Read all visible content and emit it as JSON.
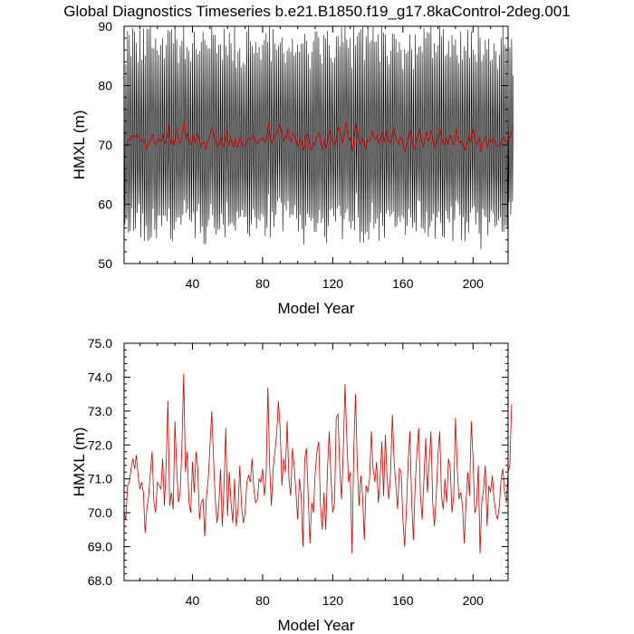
{
  "title": "Global Diagnostics Timeseries b.e21.B1850.f19_g17.8kaControl-2deg.001",
  "colors": {
    "monthly": "#000000",
    "annual": "#cc0000",
    "axis": "#000000"
  },
  "chart_data": [
    {
      "id": "top",
      "type": "line",
      "xlabel": "Model Year",
      "ylabel": "HMXL (m)",
      "xlim": [
        1,
        220
      ],
      "ylim": [
        50,
        90
      ],
      "xticks": [
        40,
        80,
        120,
        160,
        200
      ],
      "yticks": [
        50,
        60,
        70,
        80,
        90
      ],
      "ytick_labels": [
        "50",
        "60",
        "70",
        "80",
        "90"
      ],
      "series": [
        {
          "role": "monthly",
          "color": "#000000",
          "samples_per_year": 12,
          "seasonal_cycle": [
            87.5,
            83.0,
            77.0,
            71.5,
            67.0,
            62.5,
            56.5,
            59.0,
            64.0,
            68.5,
            74.0,
            80.0
          ],
          "note_envelope_min": 51,
          "note_envelope_max": 90
        },
        {
          "role": "annual",
          "color": "#cc0000",
          "yref": "bottom.values"
        }
      ]
    },
    {
      "id": "bottom",
      "type": "line",
      "xlabel": "Model Year",
      "ylabel": "HMXL (m)",
      "xlim": [
        1,
        220
      ],
      "ylim": [
        68,
        75
      ],
      "xticks": [
        40,
        80,
        120,
        160,
        200
      ],
      "yticks": [
        68,
        69,
        70,
        71,
        72,
        73,
        74,
        75
      ],
      "ytick_labels": [
        "68.0",
        "69.0",
        "70.0",
        "71.0",
        "72.0",
        "73.0",
        "74.0",
        "75.0"
      ],
      "series": [
        {
          "role": "annual",
          "color": "#cc0000",
          "x_start": 1,
          "values": [
            70.0,
            69.8,
            70.8,
            70.9,
            71.3,
            71.6,
            71.3,
            71.7,
            71.1,
            70.7,
            70.9,
            70.6,
            69.4,
            70.1,
            70.5,
            71.2,
            71.8,
            70.3,
            70.0,
            70.9,
            70.8,
            70.7,
            71.6,
            70.2,
            71.4,
            73.3,
            70.2,
            70.6,
            70.1,
            72.7,
            71.3,
            70.3,
            70.6,
            72.0,
            74.1,
            71.2,
            71.8,
            70.3,
            70.0,
            71.5,
            70.6,
            71.8,
            71.3,
            69.8,
            70.3,
            70.4,
            69.3,
            70.5,
            71.0,
            72.0,
            73.0,
            71.6,
            70.4,
            69.7,
            70.2,
            71.3,
            69.6,
            70.8,
            72.5,
            69.9,
            71.2,
            70.3,
            69.7,
            71.0,
            69.6,
            70.1,
            71.4,
            70.2,
            69.7,
            70.0,
            70.9,
            71.1,
            70.9,
            71.6,
            70.7,
            70.3,
            70.4,
            71.0,
            70.9,
            71.3,
            70.5,
            71.1,
            73.7,
            71.4,
            70.2,
            71.3,
            71.8,
            72.3,
            73.3,
            72.5,
            70.8,
            71.6,
            71.2,
            72.7,
            71.0,
            70.5,
            71.9,
            71.4,
            70.6,
            69.8,
            71.0,
            70.5,
            69.0,
            71.6,
            71.9,
            70.5,
            69.1,
            70.3,
            70.0,
            71.2,
            71.8,
            72.1,
            70.2,
            69.5,
            70.6,
            69.5,
            71.3,
            72.4,
            71.0,
            70.0,
            70.3,
            72.8,
            72.9,
            71.3,
            70.4,
            71.8,
            73.8,
            72.2,
            70.9,
            71.2,
            68.8,
            71.9,
            73.5,
            71.4,
            70.2,
            71.1,
            70.5,
            69.2,
            70.8,
            70.6,
            71.0,
            72.4,
            71.3,
            70.9,
            71.5,
            70.3,
            71.0,
            72.1,
            70.5,
            72.3,
            71.0,
            70.4,
            71.2,
            72.9,
            71.5,
            70.8,
            70.1,
            71.3,
            71.2,
            69.8,
            69.0,
            70.1,
            71.5,
            72.4,
            70.3,
            69.2,
            70.8,
            71.8,
            72.5,
            70.5,
            69.8,
            71.0,
            72.2,
            70.6,
            71.5,
            72.4,
            70.3,
            69.6,
            70.5,
            71.7,
            72.4,
            70.5,
            70.1,
            71.0,
            70.3,
            71.6,
            71.3,
            70.0,
            70.5,
            72.8,
            71.3,
            70.4,
            70.6,
            70.2,
            69.1,
            70.3,
            71.2,
            70.5,
            72.7,
            71.6,
            70.0,
            70.2,
            71.4,
            68.8,
            70.3,
            70.7,
            71.4,
            69.6,
            70.8,
            70.6,
            71.1,
            70.4,
            70.0,
            69.8,
            70.2,
            71.0,
            71.3,
            70.6,
            70.3,
            71.2,
            71.4,
            73.2
          ]
        }
      ]
    }
  ]
}
